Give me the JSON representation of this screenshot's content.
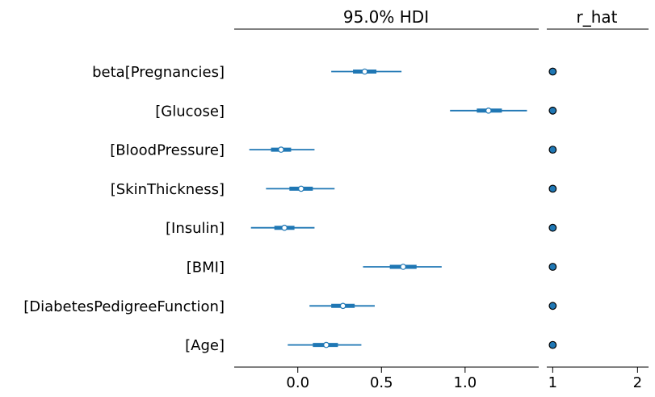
{
  "chart_data": [
    {
      "type": "scatter",
      "title": "95.0% HDI",
      "categories": [
        "beta[Pregnancies]",
        "[Glucose]",
        "[BloodPressure]",
        "[SkinThickness]",
        "[Insulin]",
        "[BMI]",
        "[DiabetesPedigreeFunction]",
        "[Age]"
      ],
      "mean": [
        0.4,
        1.14,
        -0.1,
        0.02,
        -0.08,
        0.63,
        0.27,
        0.17
      ],
      "hdi_95": [
        [
          0.2,
          0.62
        ],
        [
          0.91,
          1.37
        ],
        [
          -0.29,
          0.1
        ],
        [
          -0.19,
          0.22
        ],
        [
          -0.28,
          0.1
        ],
        [
          0.39,
          0.86
        ],
        [
          0.07,
          0.46
        ],
        [
          -0.06,
          0.38
        ]
      ],
      "iqr": [
        [
          0.33,
          0.47
        ],
        [
          1.07,
          1.22
        ],
        [
          -0.16,
          -0.04
        ],
        [
          -0.05,
          0.09
        ],
        [
          -0.14,
          -0.02
        ],
        [
          0.55,
          0.71
        ],
        [
          0.2,
          0.34
        ],
        [
          0.09,
          0.24
        ]
      ],
      "xlim": [
        -0.38,
        1.44
      ],
      "xticks": [
        "0.0",
        "0.5",
        "1.0"
      ],
      "xtick_values": [
        0.0,
        0.5,
        1.0
      ],
      "grid": false,
      "color": "#1f77b4"
    },
    {
      "type": "scatter",
      "title": "r_hat",
      "categories": [
        "beta[Pregnancies]",
        "[Glucose]",
        "[BloodPressure]",
        "[SkinThickness]",
        "[Insulin]",
        "[BMI]",
        "[DiabetesPedigreeFunction]",
        "[Age]"
      ],
      "values": [
        1.0,
        1.0,
        1.0,
        1.0,
        1.0,
        1.0,
        1.0,
        1.0
      ],
      "xlim": [
        0.93,
        2.13
      ],
      "xticks": [
        "1",
        "2"
      ],
      "xtick_values": [
        1,
        2
      ],
      "grid": false,
      "color": "#1f77b4"
    }
  ]
}
